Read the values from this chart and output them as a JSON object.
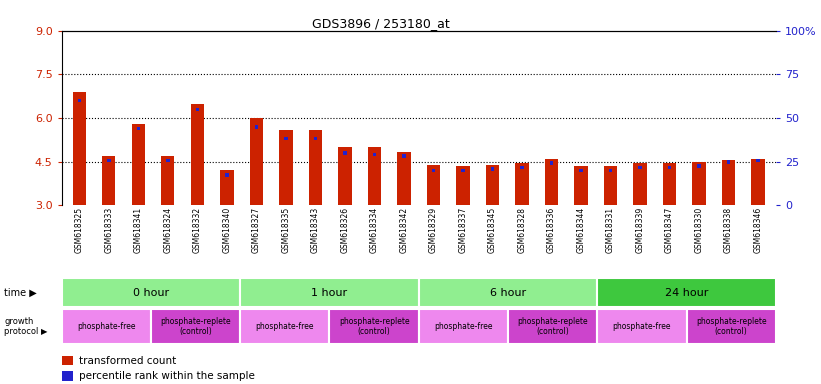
{
  "title": "GDS3896 / 253180_at",
  "samples": [
    "GSM618325",
    "GSM618333",
    "GSM618341",
    "GSM618324",
    "GSM618332",
    "GSM618340",
    "GSM618327",
    "GSM618335",
    "GSM618343",
    "GSM618326",
    "GSM618334",
    "GSM618342",
    "GSM618329",
    "GSM618337",
    "GSM618345",
    "GSM618328",
    "GSM618336",
    "GSM618344",
    "GSM618331",
    "GSM618339",
    "GSM618347",
    "GSM618330",
    "GSM618338",
    "GSM618346"
  ],
  "red_values": [
    6.9,
    4.7,
    5.8,
    4.7,
    6.5,
    4.2,
    6.0,
    5.6,
    5.6,
    5.0,
    5.0,
    4.85,
    4.4,
    4.35,
    4.4,
    4.45,
    4.6,
    4.35,
    4.35,
    4.45,
    4.45,
    4.5,
    4.55,
    4.6
  ],
  "blue_values": [
    6.6,
    4.55,
    5.65,
    4.55,
    6.3,
    4.05,
    5.7,
    5.3,
    5.3,
    4.8,
    4.75,
    4.7,
    4.2,
    4.2,
    4.25,
    4.3,
    4.45,
    4.2,
    4.2,
    4.3,
    4.3,
    4.35,
    4.5,
    4.55
  ],
  "y_min": 3,
  "y_max": 9,
  "y_ticks": [
    3,
    4.5,
    6,
    7.5,
    9
  ],
  "right_y_ticks": [
    0,
    25,
    50,
    75,
    100
  ],
  "right_y_labels": [
    "0",
    "25",
    "50",
    "75",
    "100%"
  ],
  "dotted_lines": [
    4.5,
    6.0,
    7.5
  ],
  "time_groups": [
    {
      "label": "0 hour",
      "start": 0,
      "end": 6,
      "color": "#90ee90"
    },
    {
      "label": "1 hour",
      "start": 6,
      "end": 12,
      "color": "#90ee90"
    },
    {
      "label": "6 hour",
      "start": 12,
      "end": 18,
      "color": "#90ee90"
    },
    {
      "label": "24 hour",
      "start": 18,
      "end": 24,
      "color": "#3ec83e"
    }
  ],
  "protocol_groups": [
    {
      "label": "phosphate-free",
      "start": 0,
      "end": 3,
      "color": "#ee88ee"
    },
    {
      "label": "phosphate-replete\n(control)",
      "start": 3,
      "end": 6,
      "color": "#cc44cc"
    },
    {
      "label": "phosphate-free",
      "start": 6,
      "end": 9,
      "color": "#ee88ee"
    },
    {
      "label": "phosphate-replete\n(control)",
      "start": 9,
      "end": 12,
      "color": "#cc44cc"
    },
    {
      "label": "phosphate-free",
      "start": 12,
      "end": 15,
      "color": "#ee88ee"
    },
    {
      "label": "phosphate-replete\n(control)",
      "start": 15,
      "end": 18,
      "color": "#cc44cc"
    },
    {
      "label": "phosphate-free",
      "start": 18,
      "end": 21,
      "color": "#ee88ee"
    },
    {
      "label": "phosphate-replete\n(control)",
      "start": 21,
      "end": 24,
      "color": "#cc44cc"
    }
  ],
  "bar_color_red": "#cc2200",
  "bar_color_blue": "#2222cc",
  "plot_bg": "#ffffff",
  "tick_bg": "#cccccc",
  "legend_red": "transformed count",
  "legend_blue": "percentile rank within the sample"
}
